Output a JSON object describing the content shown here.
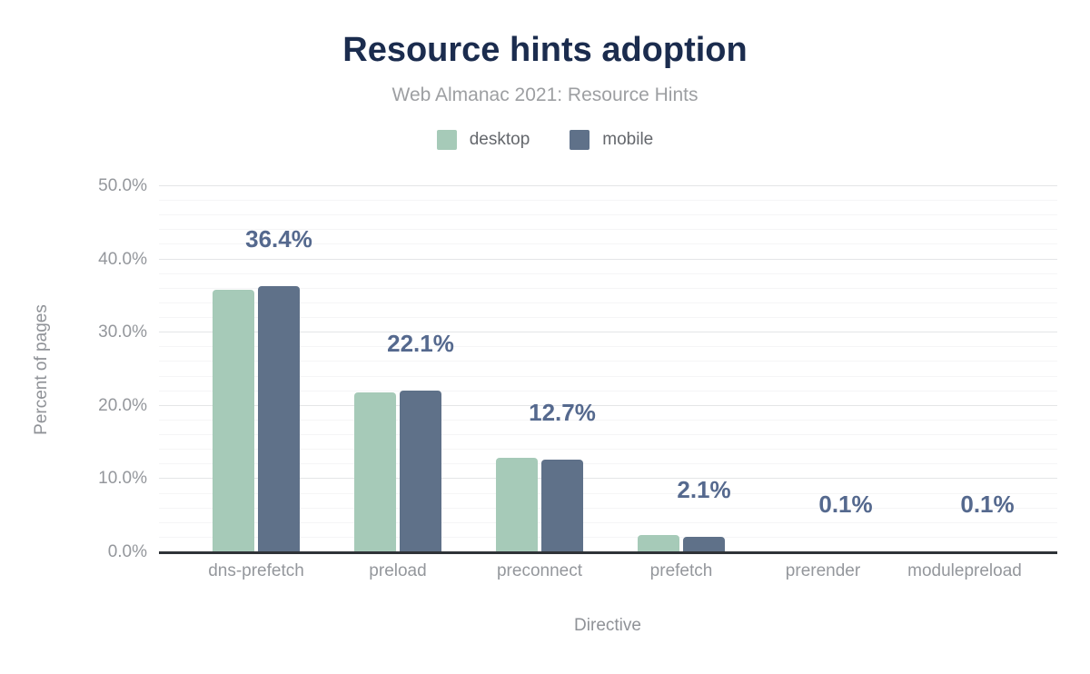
{
  "header": {
    "title": "Resource hints adoption",
    "subtitle": "Web Almanac 2021: Resource Hints"
  },
  "chart_data": {
    "type": "bar",
    "title": "Resource hints adoption",
    "subtitle": "Web Almanac 2021: Resource Hints",
    "categories": [
      "dns-prefetch",
      "preload",
      "preconnect",
      "prefetch",
      "prerender",
      "modulepreload"
    ],
    "series": [
      {
        "name": "desktop",
        "color": "#a6cab8",
        "values": [
          35.8,
          21.8,
          12.9,
          2.3,
          0.1,
          0.1
        ]
      },
      {
        "name": "mobile",
        "color": "#5f7189",
        "values": [
          36.4,
          22.1,
          12.7,
          2.1,
          0.1,
          0.1
        ]
      }
    ],
    "data_labels": [
      "36.4%",
      "22.1%",
      "12.7%",
      "2.1%",
      "0.1%",
      "0.1%"
    ],
    "data_labels_series": "mobile",
    "xlabel": "Directive",
    "ylabel": "Percent of pages",
    "ylim": [
      0,
      50
    ],
    "yticks": [
      "0.0%",
      "10.0%",
      "20.0%",
      "30.0%",
      "40.0%",
      "50.0%"
    ],
    "grid": {
      "major_step_percent": 10,
      "minor_step_percent": 2,
      "grid_on": true
    },
    "legend_position": "top"
  },
  "colors": {
    "background": "#ffffff",
    "title": "#1b2c4e",
    "subtitle": "#9d9fa2",
    "legend_text": "#64676c",
    "desktop_bar": "#a6cab8",
    "mobile_bar": "#5f7189",
    "data_label": "#55698e",
    "tick_label": "#94979c",
    "axis_title": "#8f9297",
    "axis_line": "#2f3338",
    "grid_major": "#e4e5e7",
    "grid_minor": "#f5f5f6"
  }
}
